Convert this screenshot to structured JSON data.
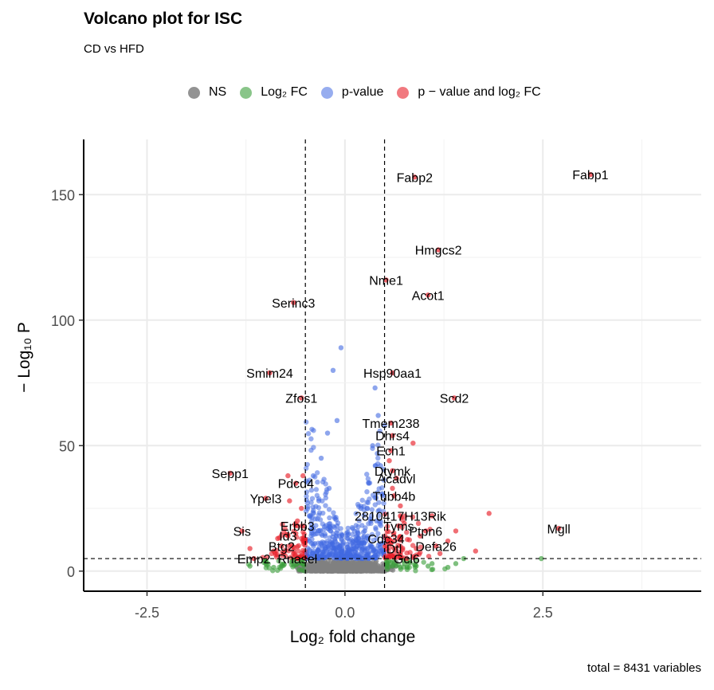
{
  "title": "Volcano plot for ISC",
  "subtitle": "CD vs HFD",
  "caption": "total = 8431 variables",
  "colors": {
    "NS": "#808080",
    "log2fc": "#3a9e3a",
    "pvalue": "#4169e1",
    "both": "#e8202a"
  },
  "legend": [
    {
      "key": "NS",
      "label": "NS",
      "color": "#808080"
    },
    {
      "key": "log2fc",
      "label": "Log₂ FC",
      "color": "#3a9e3a"
    },
    {
      "key": "pvalue",
      "label": "p-value",
      "color": "#4169e1"
    },
    {
      "key": "both",
      "label": "p − value and log₂ FC",
      "color": "#e8202a"
    }
  ],
  "chart_data": {
    "type": "scatter",
    "title": "Volcano plot for ISC",
    "subtitle": "CD vs HFD",
    "xlabel": "Log₂ fold change",
    "ylabel": "− Log₁₀ P",
    "xlim": [
      -3.3,
      4.5
    ],
    "ylim": [
      -8,
      172
    ],
    "xticks": [
      -2.5,
      0.0,
      2.5
    ],
    "xtick_labels": [
      "-2.5",
      "0.0",
      "2.5"
    ],
    "yticks": [
      0,
      50,
      100,
      150
    ],
    "ytick_labels": [
      "0",
      "50",
      "100",
      "150"
    ],
    "thresholds": {
      "fc_cutoffs": [
        -0.5,
        0.5
      ],
      "p_cutoff_neglog10": 5
    },
    "grid": true,
    "legend_position": "top",
    "labeled_genes": [
      {
        "label": "Fabp1",
        "x": 3.1,
        "y": 158
      },
      {
        "label": "Fabp2",
        "x": 0.88,
        "y": 157
      },
      {
        "label": "Hmgcs2",
        "x": 1.18,
        "y": 128
      },
      {
        "label": "Nme1",
        "x": 0.52,
        "y": 116
      },
      {
        "label": "Acot1",
        "x": 1.05,
        "y": 110
      },
      {
        "label": "Serinc3",
        "x": -0.65,
        "y": 107
      },
      {
        "label": "Hsp90aa1",
        "x": 0.6,
        "y": 79
      },
      {
        "label": "Smim24",
        "x": -0.95,
        "y": 79
      },
      {
        "label": "Scd2",
        "x": 1.38,
        "y": 69
      },
      {
        "label": "Zfos1",
        "x": -0.55,
        "y": 69
      },
      {
        "label": "Tmem238",
        "x": 0.58,
        "y": 59
      },
      {
        "label": "Dhrs4",
        "x": 0.6,
        "y": 54
      },
      {
        "label": "Ech1",
        "x": 0.58,
        "y": 48
      },
      {
        "label": "Sepp1",
        "x": -1.45,
        "y": 39
      },
      {
        "label": "Dtymk",
        "x": 0.6,
        "y": 40
      },
      {
        "label": "Acadvl",
        "x": 0.65,
        "y": 37
      },
      {
        "label": "Pdcd4",
        "x": -0.62,
        "y": 35
      },
      {
        "label": "Tubb4b",
        "x": 0.62,
        "y": 30
      },
      {
        "label": "Ypel3",
        "x": -1.0,
        "y": 29
      },
      {
        "label": "2810417H13Rik",
        "x": 0.7,
        "y": 22
      },
      {
        "label": "Erbb3",
        "x": -0.6,
        "y": 18
      },
      {
        "label": "Tyms",
        "x": 0.68,
        "y": 18
      },
      {
        "label": "Ptpn6",
        "x": 1.02,
        "y": 16
      },
      {
        "label": "Mgll",
        "x": 2.7,
        "y": 17
      },
      {
        "label": "Sis",
        "x": -1.3,
        "y": 16
      },
      {
        "label": "Id3",
        "x": -0.72,
        "y": 14
      },
      {
        "label": "Cdc34",
        "x": 0.52,
        "y": 13
      },
      {
        "label": "Defa26",
        "x": 1.15,
        "y": 10
      },
      {
        "label": "Btg2",
        "x": -0.8,
        "y": 10
      },
      {
        "label": "Dtl",
        "x": 0.62,
        "y": 9
      },
      {
        "label": "Emp2",
        "x": -1.15,
        "y": 5
      },
      {
        "label": "Rnasel",
        "x": -0.6,
        "y": 5
      },
      {
        "label": "Gcl6",
        "x": 0.78,
        "y": 5
      }
    ],
    "scattered_points": {
      "pvalue": [
        [
          -0.05,
          89
        ],
        [
          -0.15,
          80
        ],
        [
          0.38,
          73
        ],
        [
          -0.22,
          55
        ],
        [
          0.42,
          62
        ],
        [
          0.5,
          58
        ],
        [
          -0.3,
          45
        ],
        [
          0.35,
          50
        ],
        [
          -0.1,
          60
        ],
        [
          0.45,
          42
        ],
        [
          -0.4,
          38
        ],
        [
          0.3,
          35
        ],
        [
          -0.2,
          33
        ],
        [
          0.48,
          30
        ],
        [
          -0.33,
          28
        ],
        [
          0.2,
          25
        ],
        [
          -0.45,
          22
        ],
        [
          0.4,
          20
        ],
        [
          -0.1,
          18
        ],
        [
          0.25,
          16
        ],
        [
          -0.25,
          14
        ],
        [
          0.1,
          12
        ],
        [
          -0.38,
          11
        ],
        [
          0.33,
          10
        ],
        [
          -0.15,
          9
        ],
        [
          0.45,
          8
        ],
        [
          -0.48,
          7
        ],
        [
          0.15,
          7
        ],
        [
          -0.05,
          6
        ],
        [
          0.28,
          6
        ]
      ],
      "both": [
        [
          -0.53,
          38
        ],
        [
          -0.72,
          38
        ],
        [
          0.56,
          44
        ],
        [
          0.86,
          51
        ],
        [
          1.82,
          23
        ],
        [
          1.1,
          22
        ],
        [
          0.75,
          19
        ],
        [
          1.4,
          16
        ],
        [
          0.95,
          14
        ],
        [
          1.3,
          12
        ],
        [
          -0.85,
          13
        ],
        [
          -0.6,
          20
        ],
        [
          -0.55,
          25
        ],
        [
          0.7,
          26
        ],
        [
          0.6,
          33
        ],
        [
          1.65,
          8
        ],
        [
          -1.2,
          9
        ],
        [
          -0.9,
          8
        ],
        [
          0.58,
          11
        ],
        [
          -0.62,
          15
        ],
        [
          -0.7,
          28
        ],
        [
          0.9,
          9
        ],
        [
          1.2,
          7
        ],
        [
          -0.65,
          7
        ]
      ],
      "log2fc": [
        [
          -1.0,
          3
        ],
        [
          -0.8,
          2
        ],
        [
          -0.6,
          3
        ],
        [
          0.6,
          2
        ],
        [
          0.75,
          3
        ],
        [
          0.9,
          2
        ],
        [
          1.05,
          2
        ],
        [
          1.4,
          3
        ],
        [
          1.5,
          5
        ],
        [
          2.48,
          5
        ],
        [
          1.1,
          3
        ],
        [
          -1.2,
          2
        ],
        [
          0.7,
          1.5
        ],
        [
          -0.9,
          1.5
        ],
        [
          1.3,
          1.5
        ]
      ]
    }
  }
}
